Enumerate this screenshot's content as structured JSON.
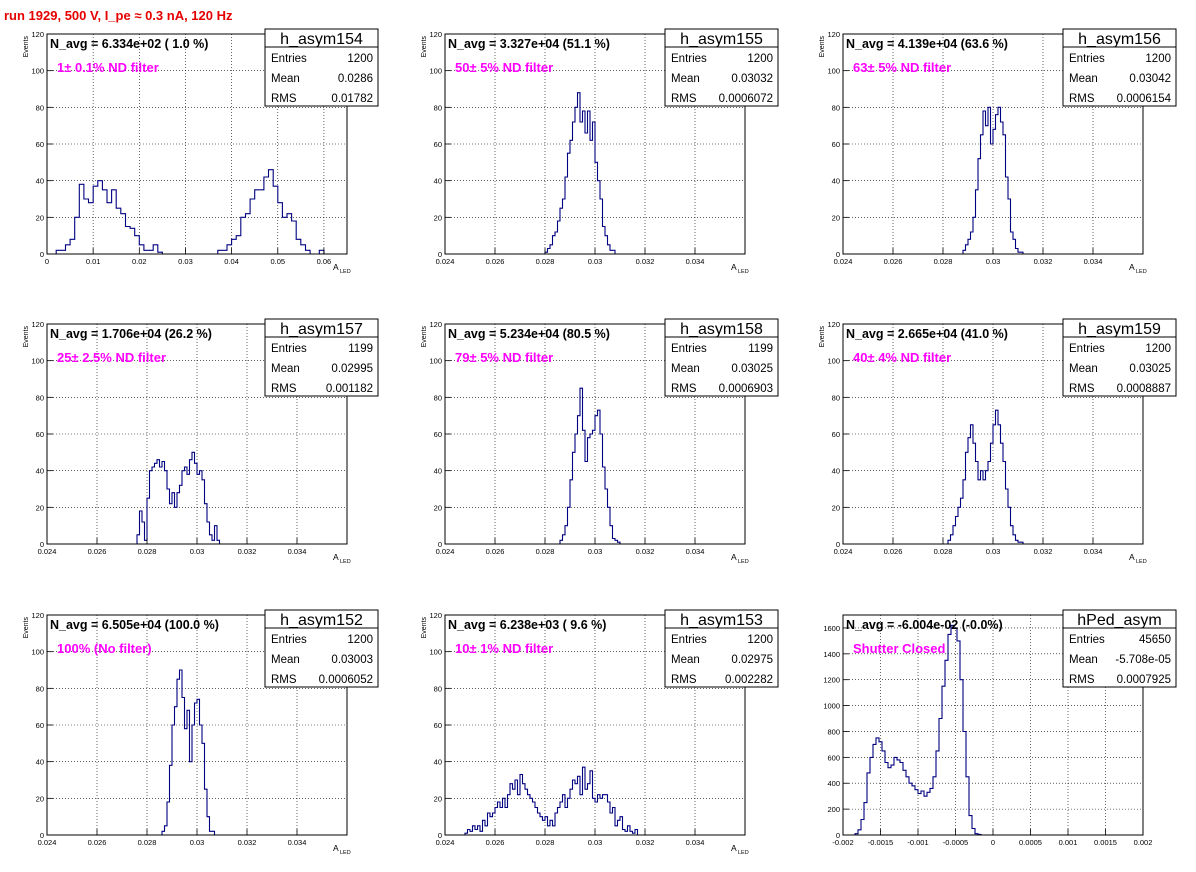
{
  "page_title": "run 1929,   500 V, I_pe ≈ 0.3 nA, 120 Hz",
  "colors": {
    "title": "#e60000",
    "annotation": "#ff00ff",
    "hist": "#000080",
    "frame": "#000000"
  },
  "chart_data": [
    {
      "type": "bar",
      "name": "h_asym154",
      "navg": "N_avg = 6.334e+02 ( 1.0 %)",
      "annotation": "1± 0.1% ND filter",
      "stats": [
        [
          "Entries",
          "1200"
        ],
        [
          "Mean",
          "0.0286"
        ],
        [
          "RMS",
          "0.01782"
        ]
      ],
      "xlabel": "A",
      "xlabel_sub": "LED",
      "ylabel": "Events",
      "xlim": [
        0,
        0.065
      ],
      "ylim": [
        0,
        120
      ],
      "xticks": [
        [
          0,
          "0"
        ],
        [
          0.01,
          "0.01"
        ],
        [
          0.02,
          "0.02"
        ],
        [
          0.03,
          "0.03"
        ],
        [
          0.04,
          "0.04"
        ],
        [
          0.05,
          "0.05"
        ],
        [
          0.06,
          "0.06"
        ]
      ],
      "yticks": [
        0,
        20,
        40,
        60,
        80,
        100,
        120
      ],
      "x_start": 0.0,
      "bin_width": 0.001,
      "values": [
        0,
        0,
        2,
        2,
        5,
        8,
        20,
        38,
        30,
        28,
        37,
        40,
        35,
        28,
        35,
        25,
        22,
        15,
        14,
        10,
        5,
        2,
        2,
        5,
        1,
        0,
        0,
        0,
        0,
        0,
        0,
        0,
        0,
        0,
        0,
        0,
        0,
        2,
        2,
        5,
        8,
        10,
        20,
        22,
        30,
        35,
        35,
        42,
        46,
        37,
        28,
        20,
        22,
        18,
        8,
        5,
        2,
        0,
        0,
        2,
        0,
        0
      ]
    },
    {
      "type": "bar",
      "name": "h_asym155",
      "navg": "N_avg = 3.327e+04 (51.1 %)",
      "annotation": "50± 5% ND filter",
      "stats": [
        [
          "Entries",
          "1200"
        ],
        [
          "Mean",
          "0.03032"
        ],
        [
          "RMS",
          "0.0006072"
        ]
      ],
      "xlabel": "A",
      "xlabel_sub": "LED",
      "ylabel": "Events",
      "xlim": [
        0.024,
        0.036
      ],
      "ylim": [
        0,
        120
      ],
      "xticks": [
        [
          0.024,
          "0.024"
        ],
        [
          0.026,
          "0.026"
        ],
        [
          0.028,
          "0.028"
        ],
        [
          0.03,
          "0.03"
        ],
        [
          0.032,
          "0.032"
        ],
        [
          0.034,
          "0.034"
        ]
      ],
      "yticks": [
        0,
        20,
        40,
        60,
        80,
        100,
        120
      ],
      "x_start": 0.028,
      "bin_width": 0.0001,
      "values": [
        1,
        3,
        5,
        10,
        12,
        18,
        25,
        30,
        42,
        55,
        62,
        72,
        80,
        88,
        72,
        78,
        66,
        78,
        62,
        72,
        50,
        40,
        30,
        15,
        10,
        5,
        2,
        2
      ]
    },
    {
      "type": "bar",
      "name": "h_asym156",
      "navg": "N_avg = 4.139e+04 (63.6 %)",
      "annotation": "63± 5% ND filter",
      "stats": [
        [
          "Entries",
          "1200"
        ],
        [
          "Mean",
          "0.03042"
        ],
        [
          "RMS",
          "0.0006154"
        ]
      ],
      "xlabel": "A",
      "xlabel_sub": "LED",
      "ylabel": "Events",
      "xlim": [
        0.024,
        0.036
      ],
      "ylim": [
        0,
        120
      ],
      "xticks": [
        [
          0.024,
          "0.024"
        ],
        [
          0.026,
          "0.026"
        ],
        [
          0.028,
          "0.028"
        ],
        [
          0.03,
          "0.03"
        ],
        [
          0.032,
          "0.032"
        ],
        [
          0.034,
          "0.034"
        ]
      ],
      "yticks": [
        0,
        20,
        40,
        60,
        80,
        100,
        120
      ],
      "x_start": 0.0288,
      "bin_width": 0.0001,
      "values": [
        2,
        5,
        8,
        12,
        20,
        35,
        52,
        65,
        78,
        70,
        80,
        60,
        68,
        76,
        80,
        72,
        65,
        42,
        30,
        12,
        8,
        3,
        1,
        1
      ]
    },
    {
      "type": "bar",
      "name": "h_asym157",
      "navg": "N_avg = 1.706e+04 (26.2 %)",
      "annotation": "25± 2.5% ND filter",
      "stats": [
        [
          "Entries",
          "1199"
        ],
        [
          "Mean",
          "0.02995"
        ],
        [
          "RMS",
          "0.001182"
        ]
      ],
      "xlabel": "A",
      "xlabel_sub": "LED",
      "ylabel": "Events",
      "xlim": [
        0.024,
        0.036
      ],
      "ylim": [
        0,
        120
      ],
      "xticks": [
        [
          0.024,
          "0.024"
        ],
        [
          0.026,
          "0.026"
        ],
        [
          0.028,
          "0.028"
        ],
        [
          0.03,
          "0.03"
        ],
        [
          0.032,
          "0.032"
        ],
        [
          0.034,
          "0.034"
        ]
      ],
      "yticks": [
        0,
        20,
        40,
        60,
        80,
        100,
        120
      ],
      "x_start": 0.0276,
      "bin_width": 0.0001,
      "values": [
        5,
        18,
        12,
        2,
        25,
        40,
        42,
        44,
        46,
        42,
        45,
        40,
        30,
        22,
        28,
        20,
        28,
        32,
        40,
        42,
        38,
        46,
        50,
        44,
        38,
        40,
        35,
        22,
        12,
        5,
        2,
        10,
        2
      ]
    },
    {
      "type": "bar",
      "name": "h_asym158",
      "navg": "N_avg = 5.234e+04 (80.5 %)",
      "annotation": "79± 5% ND filter",
      "stats": [
        [
          "Entries",
          "1199"
        ],
        [
          "Mean",
          "0.03025"
        ],
        [
          "RMS",
          "0.0006903"
        ]
      ],
      "xlabel": "A",
      "xlabel_sub": "LED",
      "ylabel": "Events",
      "xlim": [
        0.024,
        0.036
      ],
      "ylim": [
        0,
        120
      ],
      "xticks": [
        [
          0.024,
          "0.024"
        ],
        [
          0.026,
          "0.026"
        ],
        [
          0.028,
          "0.028"
        ],
        [
          0.03,
          "0.03"
        ],
        [
          0.032,
          "0.032"
        ],
        [
          0.034,
          "0.034"
        ]
      ],
      "yticks": [
        0,
        20,
        40,
        60,
        80,
        100,
        120
      ],
      "x_start": 0.0286,
      "bin_width": 0.0001,
      "values": [
        2,
        5,
        10,
        20,
        35,
        50,
        60,
        70,
        85,
        62,
        45,
        58,
        60,
        62,
        70,
        73,
        60,
        42,
        30,
        20,
        10,
        3,
        2,
        1
      ]
    },
    {
      "type": "bar",
      "name": "h_asym159",
      "navg": "N_avg = 2.665e+04 (41.0 %)",
      "annotation": "40± 4% ND filter",
      "stats": [
        [
          "Entries",
          "1200"
        ],
        [
          "Mean",
          "0.03025"
        ],
        [
          "RMS",
          "0.0008887"
        ]
      ],
      "xlabel": "A",
      "xlabel_sub": "LED",
      "ylabel": "Events",
      "xlim": [
        0.024,
        0.036
      ],
      "ylim": [
        0,
        120
      ],
      "xticks": [
        [
          0.024,
          "0.024"
        ],
        [
          0.026,
          "0.026"
        ],
        [
          0.028,
          "0.028"
        ],
        [
          0.03,
          "0.03"
        ],
        [
          0.032,
          "0.032"
        ],
        [
          0.034,
          "0.034"
        ]
      ],
      "yticks": [
        0,
        20,
        40,
        60,
        80,
        100,
        120
      ],
      "x_start": 0.0282,
      "bin_width": 0.0001,
      "values": [
        2,
        5,
        10,
        15,
        20,
        25,
        35,
        50,
        58,
        65,
        55,
        45,
        35,
        40,
        35,
        40,
        45,
        55,
        65,
        73,
        65,
        55,
        45,
        30,
        20,
        10,
        5,
        2,
        1,
        1
      ]
    },
    {
      "type": "bar",
      "name": "h_asym152",
      "navg": "N_avg = 6.505e+04 (100.0 %)",
      "annotation": "100% (No filter)",
      "stats": [
        [
          "Entries",
          "1200"
        ],
        [
          "Mean",
          "0.03003"
        ],
        [
          "RMS",
          "0.0006052"
        ]
      ],
      "xlabel": "A",
      "xlabel_sub": "LED",
      "ylabel": "Events",
      "xlim": [
        0.024,
        0.036
      ],
      "ylim": [
        0,
        120
      ],
      "xticks": [
        [
          0.024,
          "0.024"
        ],
        [
          0.026,
          "0.026"
        ],
        [
          0.028,
          "0.028"
        ],
        [
          0.03,
          "0.03"
        ],
        [
          0.032,
          "0.032"
        ],
        [
          0.034,
          "0.034"
        ]
      ],
      "yticks": [
        0,
        20,
        40,
        60,
        80,
        100,
        120
      ],
      "x_start": 0.0286,
      "bin_width": 0.0001,
      "values": [
        2,
        5,
        18,
        38,
        60,
        70,
        85,
        90,
        75,
        58,
        68,
        40,
        60,
        72,
        74,
        60,
        50,
        25,
        10,
        2,
        2
      ]
    },
    {
      "type": "bar",
      "name": "h_asym153",
      "navg": "N_avg = 6.238e+03 ( 9.6 %)",
      "annotation": "10± 1% ND filter",
      "stats": [
        [
          "Entries",
          "1200"
        ],
        [
          "Mean",
          "0.02975"
        ],
        [
          "RMS",
          "0.002282"
        ]
      ],
      "xlabel": "A",
      "xlabel_sub": "LED",
      "ylabel": "Events",
      "xlim": [
        0.024,
        0.036
      ],
      "ylim": [
        0,
        120
      ],
      "xticks": [
        [
          0.024,
          "0.024"
        ],
        [
          0.026,
          "0.026"
        ],
        [
          0.028,
          "0.028"
        ],
        [
          0.03,
          "0.03"
        ],
        [
          0.032,
          "0.032"
        ],
        [
          0.034,
          "0.034"
        ]
      ],
      "yticks": [
        0,
        20,
        40,
        60,
        80,
        100,
        120
      ],
      "x_start": 0.0248,
      "bin_width": 0.0001,
      "values": [
        1,
        3,
        2,
        5,
        3,
        5,
        2,
        8,
        5,
        12,
        10,
        12,
        15,
        18,
        15,
        20,
        15,
        22,
        28,
        25,
        30,
        22,
        33,
        28,
        25,
        22,
        20,
        18,
        15,
        12,
        10,
        8,
        10,
        5,
        8,
        5,
        12,
        15,
        18,
        22,
        15,
        20,
        25,
        30,
        28,
        32,
        22,
        37,
        25,
        28,
        35,
        20,
        18,
        22,
        20,
        22,
        22,
        18,
        12,
        15,
        5,
        8,
        10,
        3,
        2,
        5,
        2,
        1,
        3
      ]
    },
    {
      "type": "bar",
      "name": "hPed_asym",
      "navg": "N_avg = -6.004e-02 (-0.0%)",
      "annotation": "Shutter Closed",
      "stats": [
        [
          "Entries",
          "45650"
        ],
        [
          "Mean",
          "-5.708e-05"
        ],
        [
          "RMS",
          "0.0007925"
        ]
      ],
      "xlabel": "",
      "xlabel_sub": "",
      "ylabel": "",
      "xlim": [
        -0.002,
        0.002
      ],
      "ylim": [
        0,
        1700
      ],
      "xticks": [
        [
          -0.002,
          "-0.002"
        ],
        [
          -0.0015,
          "-0.0015"
        ],
        [
          -0.001,
          "-0.001"
        ],
        [
          -0.0005,
          "-0.0005"
        ],
        [
          0,
          "0"
        ],
        [
          0.0005,
          "0.0005"
        ],
        [
          0.001,
          "0.001"
        ],
        [
          0.0015,
          "0.0015"
        ],
        [
          0.002,
          "0.002"
        ]
      ],
      "yticks": [
        0,
        200,
        400,
        600,
        800,
        1000,
        1200,
        1400,
        1600
      ],
      "x_start": -0.00184,
      "bin_width": 4e-05,
      "values": [
        10,
        40,
        120,
        250,
        480,
        600,
        700,
        750,
        720,
        650,
        560,
        520,
        540,
        600,
        580,
        560,
        500,
        450,
        400,
        380,
        350,
        320,
        340,
        300,
        330,
        360,
        450,
        650,
        900,
        1150,
        1350,
        1550,
        1620,
        1600,
        1500,
        1200,
        800,
        450,
        150,
        50,
        10,
        5
      ]
    }
  ]
}
